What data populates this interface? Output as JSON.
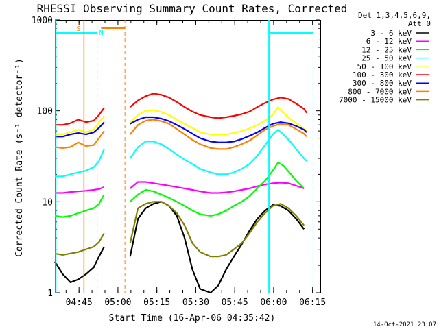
{
  "chart_data": {
    "type": "line",
    "title": "RHESSI Observing Summary Count Rates, Corrected",
    "xlabel": "Start Time (16-Apr-06 04:35:42)",
    "ylabel": "Corrected Count Rate (s⁻¹ detector⁻¹)",
    "yscale": "log",
    "ylim": [
      1,
      1000
    ],
    "xlim_minutes": [
      0,
      102.3
    ],
    "ytick_labels": [
      {
        "value": 1,
        "label": "1"
      },
      {
        "value": 10,
        "label": "10"
      },
      {
        "value": 100,
        "label": "100"
      },
      {
        "value": 1000,
        "label": "1000"
      }
    ],
    "xtick_labels": [
      {
        "value": 9.3,
        "label": "04:45"
      },
      {
        "value": 24.3,
        "label": "05:00"
      },
      {
        "value": 39.3,
        "label": "05:15"
      },
      {
        "value": 54.3,
        "label": "05:30"
      },
      {
        "value": 69.3,
        "label": "05:45"
      },
      {
        "value": 84.3,
        "label": "06:00"
      },
      {
        "value": 99.3,
        "label": "06:15"
      }
    ],
    "legend_header": [
      "Det 1,3,4,5,6,9,",
      "Att 0"
    ],
    "legend_position": "right",
    "series": [
      {
        "name": "3 - 6 keV",
        "color": "#000000",
        "points": [
          [
            0,
            2.2
          ],
          [
            3,
            1.6
          ],
          [
            6,
            1.3
          ],
          [
            9,
            1.4
          ],
          [
            12,
            1.6
          ],
          [
            15,
            1.9
          ],
          [
            17,
            2.5
          ],
          [
            19,
            3.2
          ],
          [
            29,
            2.5
          ],
          [
            32,
            6.5
          ],
          [
            35,
            8.5
          ],
          [
            38,
            9.5
          ],
          [
            41,
            10
          ],
          [
            44,
            9
          ],
          [
            47,
            7
          ],
          [
            50,
            4
          ],
          [
            53,
            1.8
          ],
          [
            56,
            1.1
          ],
          [
            60,
            1.0
          ],
          [
            63,
            1.2
          ],
          [
            66,
            1.8
          ],
          [
            69,
            2.5
          ],
          [
            72,
            3.4
          ],
          [
            75,
            4.8
          ],
          [
            78,
            6.5
          ],
          [
            81,
            8
          ],
          [
            84,
            9.2
          ],
          [
            87,
            9
          ],
          [
            90,
            8
          ],
          [
            93,
            6.5
          ],
          [
            96,
            5
          ]
        ]
      },
      {
        "name": "6 - 12 keV",
        "color": "#ff00ff",
        "points": [
          [
            0,
            12.5
          ],
          [
            3,
            12.5
          ],
          [
            6,
            12.8
          ],
          [
            9,
            13
          ],
          [
            12,
            13.2
          ],
          [
            15,
            13.5
          ],
          [
            17,
            13.8
          ],
          [
            19,
            14.5
          ],
          [
            29,
            14
          ],
          [
            32,
            16.5
          ],
          [
            35,
            16.5
          ],
          [
            38,
            16
          ],
          [
            41,
            15.5
          ],
          [
            44,
            15
          ],
          [
            47,
            14.5
          ],
          [
            50,
            14
          ],
          [
            53,
            13.5
          ],
          [
            56,
            13
          ],
          [
            60,
            12.5
          ],
          [
            63,
            12.5
          ],
          [
            66,
            12.7
          ],
          [
            69,
            13
          ],
          [
            72,
            13.5
          ],
          [
            75,
            14
          ],
          [
            78,
            14.8
          ],
          [
            81,
            15.5
          ],
          [
            84,
            16
          ],
          [
            87,
            16.2
          ],
          [
            90,
            16
          ],
          [
            93,
            15
          ],
          [
            96,
            14
          ]
        ]
      },
      {
        "name": "12 - 25 keV",
        "color": "#00ff00",
        "points": [
          [
            0,
            7
          ],
          [
            3,
            6.8
          ],
          [
            6,
            7
          ],
          [
            9,
            7.5
          ],
          [
            12,
            8
          ],
          [
            15,
            8.5
          ],
          [
            17,
            9.5
          ],
          [
            19,
            12
          ],
          [
            29,
            10
          ],
          [
            32,
            12
          ],
          [
            35,
            13.5
          ],
          [
            38,
            13
          ],
          [
            41,
            12
          ],
          [
            44,
            11
          ],
          [
            47,
            10
          ],
          [
            50,
            9
          ],
          [
            53,
            8
          ],
          [
            56,
            7.3
          ],
          [
            60,
            7
          ],
          [
            63,
            7.3
          ],
          [
            66,
            8
          ],
          [
            69,
            9
          ],
          [
            72,
            10
          ],
          [
            75,
            11.5
          ],
          [
            78,
            14
          ],
          [
            81,
            17
          ],
          [
            84,
            22
          ],
          [
            86,
            27
          ],
          [
            88,
            25
          ],
          [
            91,
            20
          ],
          [
            93,
            17
          ],
          [
            96,
            14
          ]
        ]
      },
      {
        "name": "25 - 50 keV",
        "color": "#00ffff",
        "points": [
          [
            0,
            19
          ],
          [
            3,
            19
          ],
          [
            6,
            20
          ],
          [
            9,
            21
          ],
          [
            12,
            22
          ],
          [
            15,
            24
          ],
          [
            17,
            28
          ],
          [
            19,
            38
          ],
          [
            29,
            30
          ],
          [
            32,
            40
          ],
          [
            35,
            46
          ],
          [
            38,
            46
          ],
          [
            41,
            43
          ],
          [
            44,
            38
          ],
          [
            47,
            33
          ],
          [
            50,
            29
          ],
          [
            53,
            26
          ],
          [
            56,
            23
          ],
          [
            60,
            21
          ],
          [
            63,
            20
          ],
          [
            66,
            20
          ],
          [
            69,
            21
          ],
          [
            72,
            23
          ],
          [
            75,
            26
          ],
          [
            78,
            32
          ],
          [
            81,
            42
          ],
          [
            84,
            55
          ],
          [
            86,
            62
          ],
          [
            88,
            55
          ],
          [
            91,
            45
          ],
          [
            93,
            38
          ],
          [
            96,
            30
          ],
          [
            97,
            28
          ]
        ]
      },
      {
        "name": "50 - 100 keV",
        "color": "#ffff00",
        "points": [
          [
            0,
            55
          ],
          [
            3,
            55
          ],
          [
            6,
            58
          ],
          [
            9,
            62
          ],
          [
            12,
            58
          ],
          [
            15,
            62
          ],
          [
            17,
            75
          ],
          [
            19,
            88
          ],
          [
            29,
            75
          ],
          [
            32,
            90
          ],
          [
            35,
            100
          ],
          [
            38,
            102
          ],
          [
            41,
            97
          ],
          [
            44,
            90
          ],
          [
            47,
            80
          ],
          [
            50,
            72
          ],
          [
            53,
            65
          ],
          [
            56,
            58
          ],
          [
            60,
            55
          ],
          [
            63,
            55
          ],
          [
            66,
            55
          ],
          [
            69,
            57
          ],
          [
            72,
            60
          ],
          [
            75,
            64
          ],
          [
            78,
            70
          ],
          [
            81,
            78
          ],
          [
            84,
            90
          ],
          [
            86,
            110
          ],
          [
            88,
            95
          ],
          [
            91,
            80
          ],
          [
            94,
            70
          ],
          [
            97,
            60
          ]
        ]
      },
      {
        "name": "100 - 300 keV",
        "color": "#ff0000",
        "points": [
          [
            0,
            70
          ],
          [
            3,
            70
          ],
          [
            6,
            73
          ],
          [
            9,
            80
          ],
          [
            12,
            75
          ],
          [
            15,
            78
          ],
          [
            17,
            90
          ],
          [
            19,
            108
          ],
          [
            29,
            110
          ],
          [
            32,
            130
          ],
          [
            35,
            145
          ],
          [
            38,
            155
          ],
          [
            41,
            150
          ],
          [
            44,
            140
          ],
          [
            47,
            125
          ],
          [
            50,
            110
          ],
          [
            53,
            98
          ],
          [
            56,
            90
          ],
          [
            60,
            85
          ],
          [
            63,
            83
          ],
          [
            66,
            85
          ],
          [
            69,
            88
          ],
          [
            72,
            92
          ],
          [
            75,
            98
          ],
          [
            78,
            110
          ],
          [
            81,
            122
          ],
          [
            84,
            133
          ],
          [
            87,
            140
          ],
          [
            90,
            135
          ],
          [
            93,
            120
          ],
          [
            96,
            105
          ],
          [
            97,
            95
          ]
        ]
      },
      {
        "name": "300 - 800 keV",
        "color": "#0000ff",
        "points": [
          [
            0,
            52
          ],
          [
            3,
            52
          ],
          [
            6,
            55
          ],
          [
            9,
            57
          ],
          [
            12,
            55
          ],
          [
            15,
            58
          ],
          [
            17,
            65
          ],
          [
            19,
            75
          ],
          [
            29,
            72
          ],
          [
            32,
            80
          ],
          [
            35,
            85
          ],
          [
            38,
            85
          ],
          [
            41,
            82
          ],
          [
            44,
            77
          ],
          [
            47,
            70
          ],
          [
            50,
            63
          ],
          [
            53,
            56
          ],
          [
            56,
            50
          ],
          [
            60,
            46
          ],
          [
            63,
            45
          ],
          [
            66,
            45
          ],
          [
            69,
            46
          ],
          [
            72,
            49
          ],
          [
            75,
            53
          ],
          [
            78,
            58
          ],
          [
            81,
            65
          ],
          [
            84,
            72
          ],
          [
            87,
            75
          ],
          [
            90,
            73
          ],
          [
            93,
            68
          ],
          [
            96,
            62
          ],
          [
            97,
            58
          ]
        ]
      },
      {
        "name": "800 - 7000 keV",
        "color": "#ff8000",
        "points": [
          [
            0,
            40
          ],
          [
            3,
            39
          ],
          [
            6,
            40
          ],
          [
            9,
            45
          ],
          [
            12,
            41
          ],
          [
            15,
            42
          ],
          [
            17,
            50
          ],
          [
            19,
            60
          ],
          [
            29,
            55
          ],
          [
            32,
            70
          ],
          [
            35,
            78
          ],
          [
            38,
            80
          ],
          [
            41,
            77
          ],
          [
            44,
            72
          ],
          [
            47,
            63
          ],
          [
            50,
            55
          ],
          [
            53,
            48
          ],
          [
            56,
            43
          ],
          [
            60,
            39
          ],
          [
            63,
            38
          ],
          [
            66,
            38
          ],
          [
            69,
            40
          ],
          [
            72,
            43
          ],
          [
            75,
            47
          ],
          [
            78,
            54
          ],
          [
            81,
            62
          ],
          [
            84,
            68
          ],
          [
            87,
            72
          ],
          [
            90,
            70
          ],
          [
            93,
            63
          ],
          [
            96,
            56
          ],
          [
            97,
            52
          ]
        ]
      },
      {
        "name": "7000 - 15000 keV",
        "color": "#808000",
        "points": [
          [
            0,
            2.7
          ],
          [
            3,
            2.6
          ],
          [
            6,
            2.7
          ],
          [
            9,
            2.8
          ],
          [
            12,
            3.0
          ],
          [
            15,
            3.2
          ],
          [
            17,
            3.6
          ],
          [
            19,
            4.5
          ],
          [
            29,
            3.5
          ],
          [
            32,
            8.5
          ],
          [
            35,
            9.5
          ],
          [
            38,
            10
          ],
          [
            41,
            10
          ],
          [
            44,
            9
          ],
          [
            47,
            7.5
          ],
          [
            50,
            5.5
          ],
          [
            53,
            3.5
          ],
          [
            56,
            2.8
          ],
          [
            60,
            2.5
          ],
          [
            63,
            2.5
          ],
          [
            66,
            2.6
          ],
          [
            69,
            3
          ],
          [
            72,
            3.5
          ],
          [
            75,
            4.5
          ],
          [
            78,
            6
          ],
          [
            81,
            7.5
          ],
          [
            84,
            9
          ],
          [
            87,
            9.5
          ],
          [
            90,
            8.5
          ],
          [
            93,
            7
          ],
          [
            96,
            5.5
          ]
        ]
      }
    ],
    "annotations": [
      {
        "label": "S",
        "x": 11.2,
        "color": "#ff8000"
      },
      {
        "label": "N",
        "x": 16.3,
        "color": "#00ffff"
      }
    ],
    "footer": "14-Oct-2021 23:07"
  }
}
